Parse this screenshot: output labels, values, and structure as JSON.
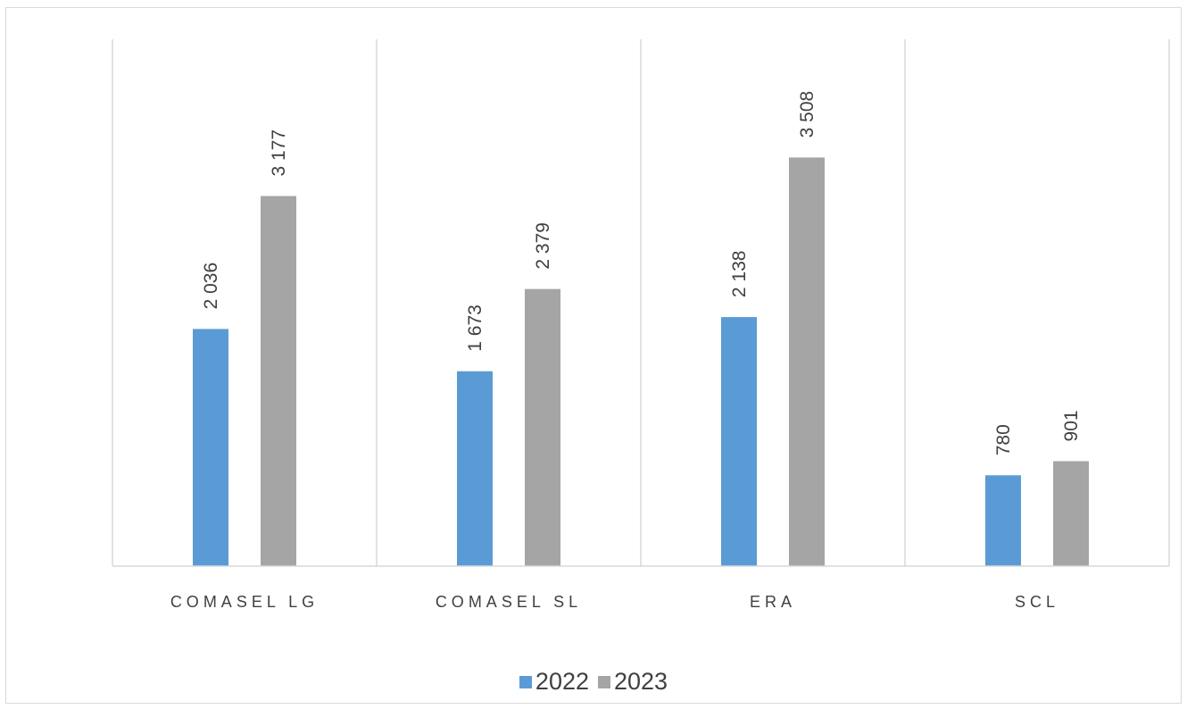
{
  "chart_data": {
    "type": "bar",
    "title": "",
    "xlabel": "",
    "ylabel": "",
    "categories": [
      "COMASEL LG",
      "COMASEL SL",
      "ERA",
      "SCL"
    ],
    "series": [
      {
        "name": "2022",
        "values": [
          2036,
          1673,
          2138,
          780
        ],
        "labels": [
          "2 036",
          "1 673",
          "2 138",
          "780"
        ],
        "color": "#5b9bd5"
      },
      {
        "name": "2023",
        "values": [
          3177,
          2379,
          3508,
          901
        ],
        "labels": [
          "3 177",
          "2 379",
          "3 508",
          "901"
        ],
        "color": "#a5a5a5"
      }
    ],
    "ylim": [
      0,
      4400
    ],
    "grid": "vertical category separators",
    "legend": "bottom-center",
    "data_labels": "rotated, above bars"
  }
}
